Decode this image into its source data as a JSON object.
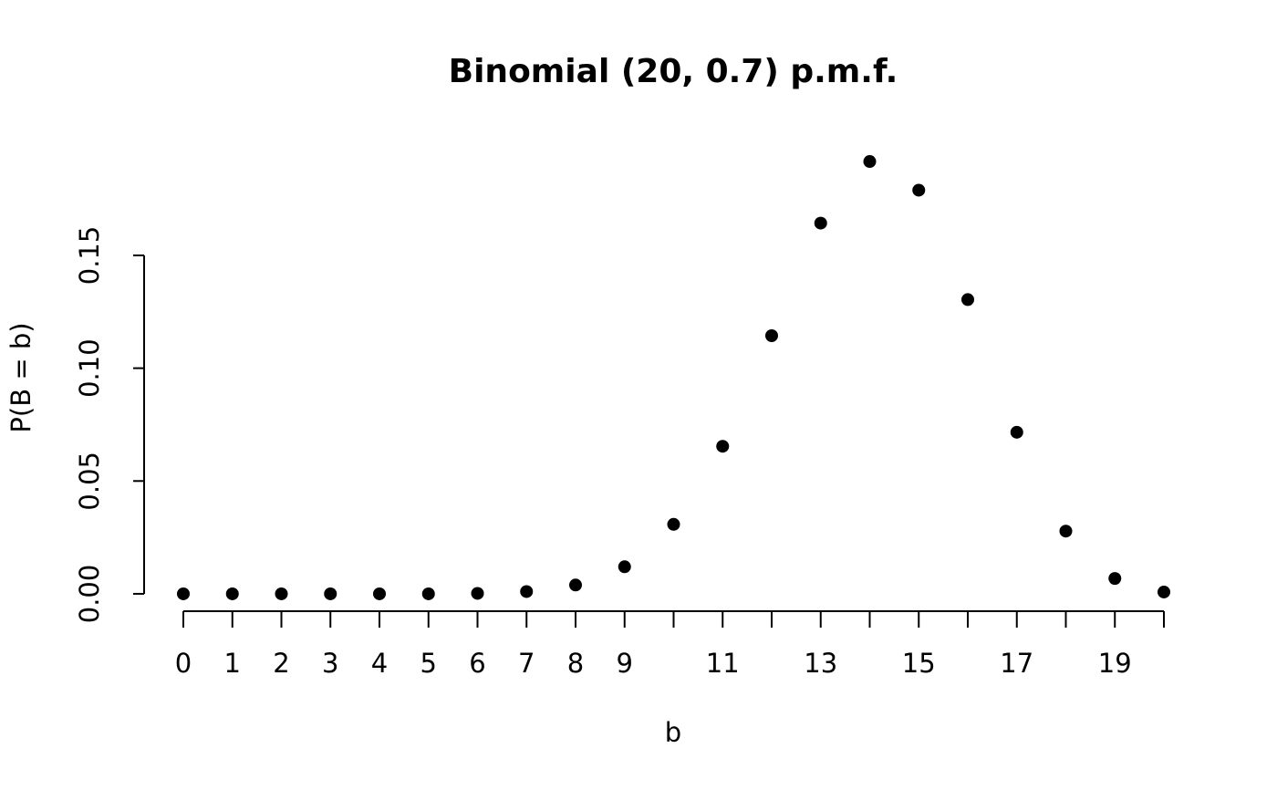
{
  "chart_data": {
    "type": "scatter",
    "title": "Binomial (20, 0.7) p.m.f.",
    "xlabel": "b",
    "ylabel": "P(B = b)",
    "x": [
      0,
      1,
      2,
      3,
      4,
      5,
      6,
      7,
      8,
      9,
      10,
      11,
      12,
      13,
      14,
      15,
      16,
      17,
      18,
      19,
      20
    ],
    "values": [
      0,
      0,
      0,
      0,
      0,
      0,
      0.0002,
      0.001,
      0.0039,
      0.012,
      0.0308,
      0.0654,
      0.1144,
      0.1643,
      0.1916,
      0.1789,
      0.1304,
      0.0716,
      0.0278,
      0.0068,
      0.0008
    ],
    "color": "#000000",
    "xlim": [
      -0.8,
      20.8
    ],
    "xticks": [
      0,
      1,
      2,
      3,
      4,
      5,
      6,
      7,
      8,
      9,
      {
        "value": 10,
        "label": null
      },
      11,
      {
        "value": 12,
        "label": null
      },
      13,
      {
        "value": 14,
        "label": null
      },
      15,
      {
        "value": 16,
        "label": null
      },
      17,
      {
        "value": 18,
        "label": null
      },
      19,
      {
        "value": 20,
        "label": null
      }
    ],
    "ylim": [
      -0.0077,
      0.1993
    ],
    "yticks": [
      {
        "value": 0,
        "label": "0.00"
      },
      {
        "value": 0.05,
        "label": "0.05"
      },
      {
        "value": 0.1,
        "label": "0.10"
      },
      0.15
    ]
  }
}
